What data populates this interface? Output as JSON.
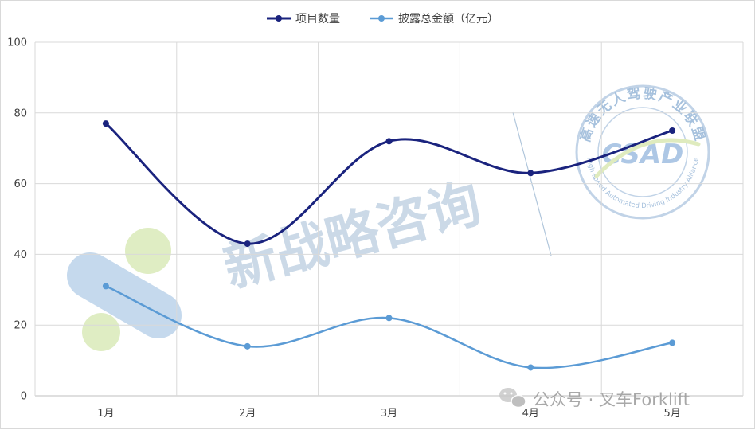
{
  "chart_data": {
    "type": "line",
    "categories": [
      "1月",
      "2月",
      "3月",
      "4月",
      "5月"
    ],
    "series": [
      {
        "name": "项目数量",
        "values": [
          77,
          43,
          72,
          63,
          75
        ],
        "color": "#1a237e"
      },
      {
        "name": "披露总金额（亿元）",
        "values": [
          31,
          14,
          22,
          8,
          15
        ],
        "color": "#5b9bd5"
      }
    ],
    "ylim": [
      0,
      100
    ],
    "yticks": [
      "0",
      "20",
      "40",
      "60",
      "80",
      "100"
    ],
    "grid": true,
    "legend_position": "top",
    "smooth": true
  },
  "watermarks": {
    "center_text": "新战略咨询",
    "seal_abbr": "CSAD",
    "seal_top_text": "高速无人驾驶产业联盟",
    "seal_bottom_text": "High-speed Automated Driving Industry Alliance",
    "wechat_text": "公众号 · 叉车Forklift",
    "wechat_icon": "wechat-icon"
  }
}
